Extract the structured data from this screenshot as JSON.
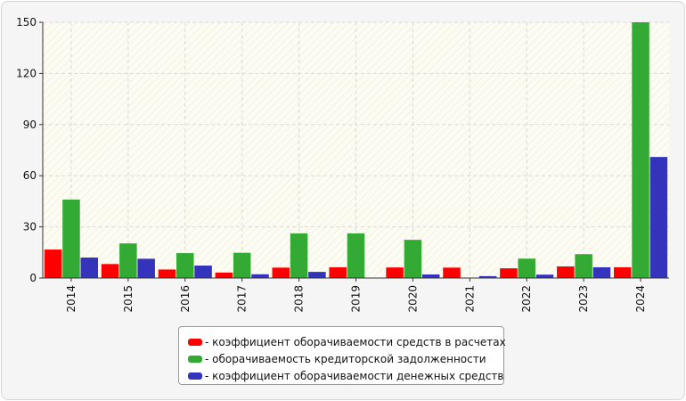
{
  "chart_data": {
    "type": "bar",
    "categories": [
      "2014",
      "2015",
      "2016",
      "2017",
      "2018",
      "2019",
      "2020",
      "2021",
      "2022",
      "2023",
      "2024"
    ],
    "series": [
      {
        "name": "- коэффициент оборачиваемости средств в расчетах",
        "color": "#ff0000",
        "values": [
          16.7,
          8.2,
          5.0,
          3.2,
          6.1,
          6.3,
          6.2,
          6.1,
          5.7,
          6.8,
          6.3
        ]
      },
      {
        "name": "- оборачиваемость кредиторской задолженности",
        "color": "#33aa33",
        "values": [
          46.0,
          20.3,
          14.6,
          14.8,
          26.2,
          26.2,
          22.4,
          0,
          11.4,
          14.0,
          150.0
        ]
      },
      {
        "name": "- коэффициент оборачиваемости денежных средств",
        "color": "#3333bb",
        "values": [
          12.0,
          11.3,
          7.3,
          2.2,
          3.6,
          0,
          2.1,
          1.1,
          2.0,
          6.3,
          71.0
        ]
      }
    ],
    "yticks": [
      "0",
      "30",
      "60",
      "90",
      "120",
      "150"
    ],
    "ylim": [
      0,
      150
    ],
    "grid": true,
    "legend_position": "bottom-center"
  }
}
